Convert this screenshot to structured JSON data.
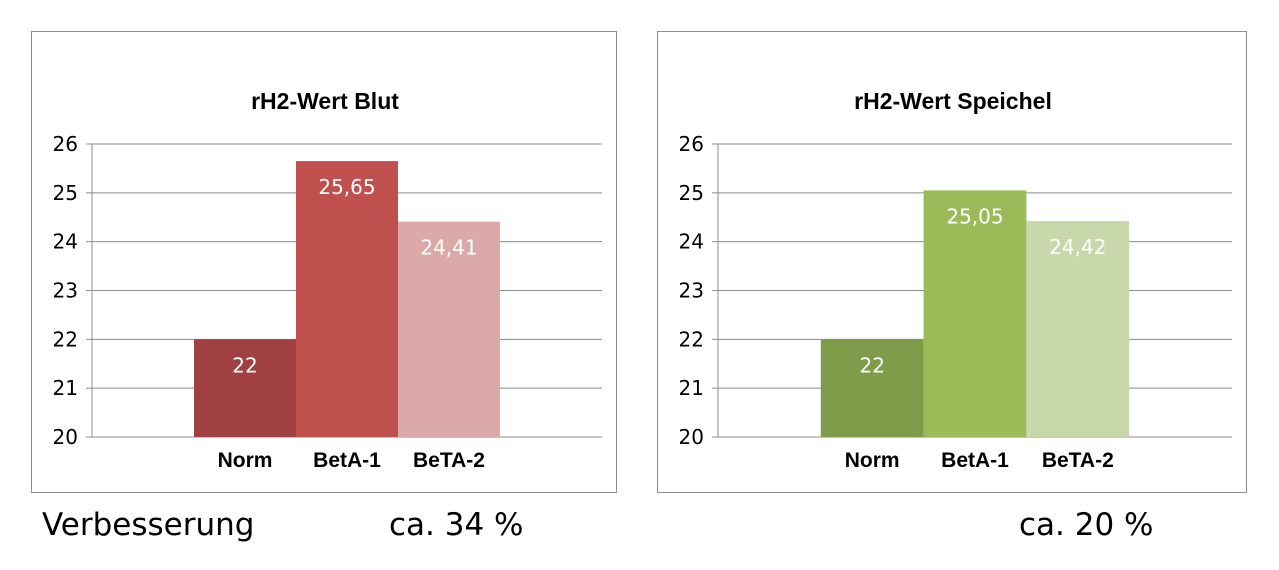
{
  "chart_data": [
    {
      "type": "bar",
      "title": "rH2-Wert Blut",
      "categories": [
        "Norm",
        "BetA-1",
        "BeTA-2"
      ],
      "values": [
        22,
        25.65,
        24.41
      ],
      "data_labels": [
        "22",
        "25,65",
        "24,41"
      ],
      "ylim": [
        20,
        26
      ],
      "yticks": [
        20,
        21,
        22,
        23,
        24,
        25,
        26
      ],
      "grid": true,
      "legend": "none",
      "colors": [
        "#a04040",
        "#c0504d",
        "#dba9a8"
      ]
    },
    {
      "type": "bar",
      "title": "rH2-Wert Speichel",
      "categories": [
        "Norm",
        "BetA-1",
        "BeTA-2"
      ],
      "values": [
        22,
        25.05,
        24.42
      ],
      "data_labels": [
        "22",
        "25,05",
        "24,42"
      ],
      "ylim": [
        20,
        26
      ],
      "yticks": [
        20,
        21,
        22,
        23,
        24,
        25,
        26
      ],
      "grid": true,
      "legend": "none",
      "colors": [
        "#7f9c4a",
        "#9bbb59",
        "#c8d8ab"
      ]
    }
  ],
  "footer": {
    "label": "Verbesserung",
    "blut_improvement": "ca. 34 %",
    "speichel_improvement": "ca. 20 %"
  }
}
